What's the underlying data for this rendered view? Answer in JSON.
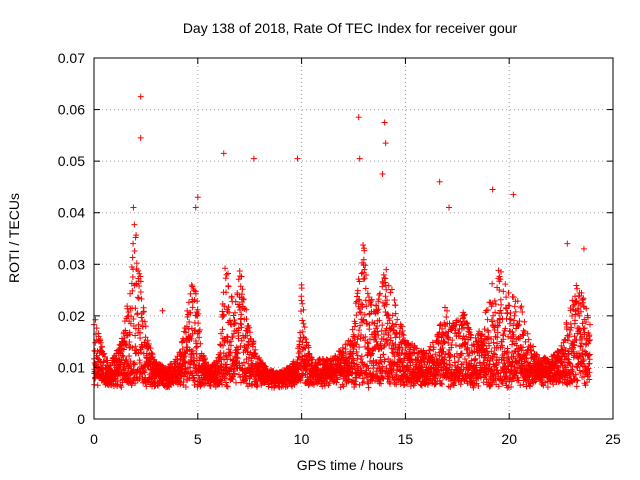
{
  "chart_data": {
    "type": "scatter",
    "title": "Day 138 of 2018, Rate Of TEC Index for receiver gour",
    "xlabel": "GPS time / hours",
    "ylabel": "ROTI / TECUs",
    "xlim": [
      0,
      25
    ],
    "ylim": [
      0,
      0.07
    ],
    "xticks": [
      "0",
      "5",
      "10",
      "15",
      "20",
      "25"
    ],
    "xtick_values": [
      0,
      5,
      10,
      15,
      20,
      25
    ],
    "yticks": [
      "0",
      "0.01",
      "0.02",
      "0.03",
      "0.04",
      "0.05",
      "0.06",
      "0.07"
    ],
    "ytick_values": [
      0,
      0.01,
      0.02,
      0.03,
      0.04,
      0.05,
      0.06,
      0.07
    ],
    "grid": true,
    "marker": "+",
    "color": "#ff0000",
    "series": [
      {
        "name": "ROTI",
        "envelope": [
          [
            0.0,
            0.02
          ],
          [
            0.2,
            0.018
          ],
          [
            0.5,
            0.013
          ],
          [
            0.8,
            0.011
          ],
          [
            1.0,
            0.013
          ],
          [
            1.3,
            0.015
          ],
          [
            1.6,
            0.022
          ],
          [
            1.8,
            0.03
          ],
          [
            1.95,
            0.04
          ],
          [
            2.1,
            0.034
          ],
          [
            2.3,
            0.025
          ],
          [
            2.6,
            0.015
          ],
          [
            3.0,
            0.011
          ],
          [
            3.5,
            0.01
          ],
          [
            4.0,
            0.012
          ],
          [
            4.3,
            0.016
          ],
          [
            4.6,
            0.024
          ],
          [
            4.8,
            0.028
          ],
          [
            5.0,
            0.022
          ],
          [
            5.2,
            0.013
          ],
          [
            5.6,
            0.01
          ],
          [
            6.0,
            0.012
          ],
          [
            6.3,
            0.03
          ],
          [
            6.5,
            0.028
          ],
          [
            6.8,
            0.022
          ],
          [
            7.0,
            0.032
          ],
          [
            7.2,
            0.025
          ],
          [
            7.5,
            0.018
          ],
          [
            7.8,
            0.013
          ],
          [
            8.3,
            0.01
          ],
          [
            8.8,
            0.009
          ],
          [
            9.3,
            0.01
          ],
          [
            9.8,
            0.012
          ],
          [
            10.0,
            0.028
          ],
          [
            10.2,
            0.016
          ],
          [
            10.6,
            0.011
          ],
          [
            11.0,
            0.012
          ],
          [
            11.5,
            0.012
          ],
          [
            12.0,
            0.014
          ],
          [
            12.5,
            0.018
          ],
          [
            12.8,
            0.03
          ],
          [
            13.0,
            0.035
          ],
          [
            13.3,
            0.024
          ],
          [
            13.6,
            0.022
          ],
          [
            14.0,
            0.03
          ],
          [
            14.3,
            0.026
          ],
          [
            14.6,
            0.021
          ],
          [
            15.0,
            0.016
          ],
          [
            15.5,
            0.014
          ],
          [
            16.0,
            0.013
          ],
          [
            16.5,
            0.016
          ],
          [
            16.9,
            0.022
          ],
          [
            17.3,
            0.019
          ],
          [
            17.8,
            0.021
          ],
          [
            18.3,
            0.015
          ],
          [
            18.8,
            0.02
          ],
          [
            19.2,
            0.027
          ],
          [
            19.5,
            0.03
          ],
          [
            19.9,
            0.026
          ],
          [
            20.3,
            0.024
          ],
          [
            20.6,
            0.022
          ],
          [
            21.0,
            0.015
          ],
          [
            21.5,
            0.012
          ],
          [
            22.0,
            0.012
          ],
          [
            22.5,
            0.014
          ],
          [
            22.9,
            0.022
          ],
          [
            23.2,
            0.026
          ],
          [
            23.5,
            0.025
          ],
          [
            23.8,
            0.02
          ]
        ],
        "floor": 0.004,
        "outliers": [
          [
            2.25,
            0.0625
          ],
          [
            2.25,
            0.0545
          ],
          [
            6.25,
            0.0515
          ],
          [
            7.7,
            0.0505
          ],
          [
            9.8,
            0.0505
          ],
          [
            12.75,
            0.0585
          ],
          [
            14.0,
            0.0575
          ],
          [
            14.05,
            0.0535
          ],
          [
            13.9,
            0.0475
          ],
          [
            12.8,
            0.0505
          ],
          [
            16.65,
            0.046
          ],
          [
            19.2,
            0.0445
          ],
          [
            20.2,
            0.0435
          ],
          [
            5.0,
            0.043
          ],
          [
            4.9,
            0.041
          ],
          [
            3.3,
            0.021
          ],
          [
            22.8,
            0.034
          ],
          [
            23.6,
            0.033
          ],
          [
            17.1,
            0.041
          ],
          [
            1.9,
            0.041
          ]
        ]
      }
    ]
  }
}
